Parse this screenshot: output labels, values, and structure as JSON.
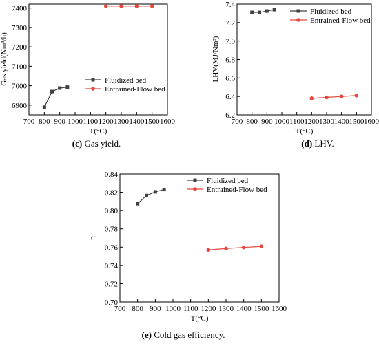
{
  "chart_data": [
    {
      "id": "c",
      "type": "line",
      "xlabel": "T(°C)",
      "ylabel": "Gas yield(Nm³/h)",
      "xlim": [
        700,
        1600
      ],
      "ylim": [
        6850,
        7420
      ],
      "xticks": [
        700,
        800,
        900,
        1000,
        1100,
        1200,
        1300,
        1400,
        1500,
        1600
      ],
      "xtick_labels": [
        "700",
        "800",
        "900",
        "1000",
        "1100",
        "1200",
        "1300",
        "1400",
        "1500",
        "1600"
      ],
      "yticks": [
        6900,
        7000,
        7100,
        7200,
        7300,
        7400
      ],
      "ytick_labels": [
        "6900",
        "7000",
        "7100",
        "7200",
        "7300",
        "7400"
      ],
      "legend_position": "bottom-right",
      "series": [
        {
          "name": "Fluidized bed",
          "color": "#404040",
          "marker": "square",
          "x": [
            800,
            850,
            900,
            950
          ],
          "y": [
            6890,
            6970,
            6988,
            6993
          ]
        },
        {
          "name": "Entrained-Flow bed",
          "color": "#e8473f",
          "marker": "circle",
          "x": [
            1200,
            1300,
            1400,
            1500
          ],
          "y": [
            7410,
            7410,
            7410,
            7410
          ]
        }
      ],
      "caption_label": "(c)",
      "caption_text": " Gas yield."
    },
    {
      "id": "d",
      "type": "line",
      "xlabel": "T(°C)",
      "ylabel": "LHV(MJ/Nm³)",
      "xlim": [
        700,
        1600
      ],
      "ylim": [
        6.2,
        7.4
      ],
      "xticks": [
        700,
        800,
        900,
        1000,
        1100,
        1200,
        1300,
        1400,
        1500,
        1600
      ],
      "xtick_labels": [
        "700",
        "800",
        "900",
        "1000",
        "1100",
        "1200",
        "1300",
        "1400",
        "1500",
        "1600"
      ],
      "yticks": [
        6.2,
        6.4,
        6.6,
        6.8,
        7.0,
        7.2,
        7.4
      ],
      "ytick_labels": [
        "6.2",
        "6.4",
        "6.6",
        "6.8",
        "7.0",
        "7.2",
        "7.4"
      ],
      "legend_position": "top-right",
      "series": [
        {
          "name": "Fluidized bed",
          "color": "#404040",
          "marker": "square",
          "x": [
            800,
            850,
            900,
            950
          ],
          "y": [
            7.31,
            7.31,
            7.325,
            7.34
          ]
        },
        {
          "name": "Entrained-Flow bed",
          "color": "#e8473f",
          "marker": "circle",
          "x": [
            1200,
            1300,
            1400,
            1500
          ],
          "y": [
            6.38,
            6.39,
            6.4,
            6.41
          ]
        }
      ],
      "caption_label": "(d)",
      "caption_text": " LHV."
    },
    {
      "id": "e",
      "type": "line",
      "xlabel": "T(°C)",
      "ylabel": "η",
      "xlim": [
        700,
        1600
      ],
      "ylim": [
        0.7,
        0.84
      ],
      "xticks": [
        700,
        800,
        900,
        1000,
        1100,
        1200,
        1300,
        1400,
        1500,
        1600
      ],
      "xtick_labels": [
        "700",
        "800",
        "900",
        "1000",
        "1100",
        "1200",
        "1300",
        "1400",
        "1500",
        "1600"
      ],
      "yticks": [
        0.7,
        0.72,
        0.74,
        0.76,
        0.78,
        0.8,
        0.82,
        0.84
      ],
      "ytick_labels": [
        "0.70",
        "0.72",
        "0.74",
        "0.76",
        "0.78",
        "0.80",
        "0.82",
        "0.84"
      ],
      "legend_position": "top-right",
      "series": [
        {
          "name": "Fluidized bed",
          "color": "#404040",
          "marker": "square",
          "x": [
            800,
            850,
            900,
            950
          ],
          "y": [
            0.8075,
            0.8165,
            0.8205,
            0.823
          ]
        },
        {
          "name": "Entrained-Flow bed",
          "color": "#e8473f",
          "marker": "circle",
          "x": [
            1200,
            1300,
            1400,
            1500
          ],
          "y": [
            0.757,
            0.7585,
            0.7597,
            0.7608
          ]
        }
      ],
      "caption_label": "(e)",
      "caption_text": " Cold gas efficiency."
    }
  ]
}
